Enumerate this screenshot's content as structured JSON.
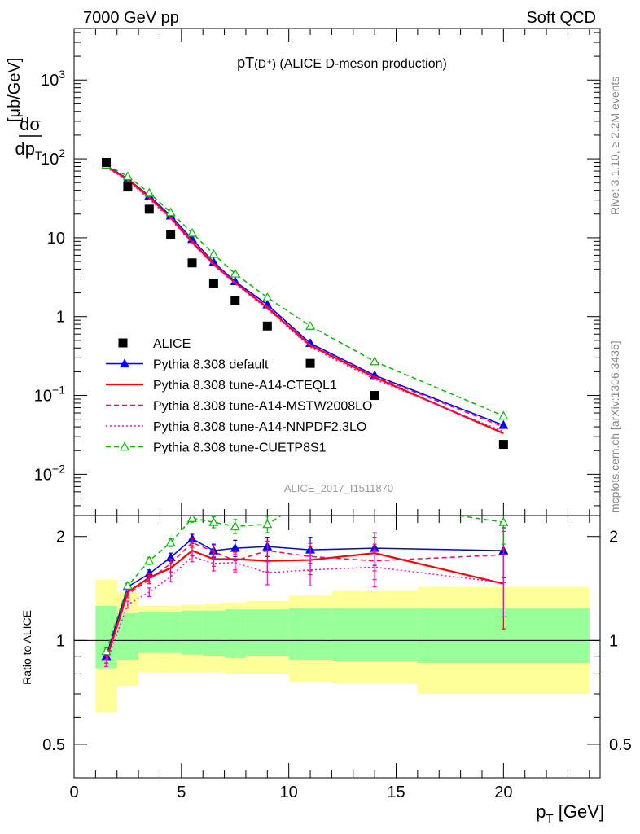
{
  "header": {
    "left": "7000 GeV pp",
    "right": "Soft QCD"
  },
  "side_texts": {
    "rivet": "Rivet 3.1.10, ≥ 2.2M events",
    "mcplots": "mcplots.cern.ch [arXiv:1306.3436]"
  },
  "chart_data": [
    {
      "type": "line",
      "panel": "main",
      "title_main": "pT",
      "title_sub": "(D⁺)",
      "title_rest": " (ALICE D-meson production)",
      "analysis_label": "ALICE_2017_I1511870",
      "ylabel_num": "dσ",
      "ylabel_den": "dp",
      "ylabel_den_sub": "T",
      "ylabel_unit": "[μb/GeV]",
      "yscale": "log",
      "ylim": [
        0.003,
        4500
      ],
      "xlim": [
        0,
        24.5
      ],
      "yticks": [
        {
          "value": 0.01,
          "base": "10",
          "exp": "−2"
        },
        {
          "value": 0.1,
          "base": "10",
          "exp": "−1"
        },
        {
          "value": 1,
          "base": "1",
          "exp": ""
        },
        {
          "value": 10,
          "base": "10",
          "exp": ""
        },
        {
          "value": 100,
          "base": "10",
          "exp": "2"
        },
        {
          "value": 1000,
          "base": "10",
          "exp": "3"
        }
      ],
      "legend_position": "center-left",
      "data_series": {
        "name": "ALICE",
        "color": "#000000",
        "x": [
          1.5,
          2.5,
          3.5,
          4.5,
          5.5,
          6.5,
          7.5,
          9,
          11,
          14,
          20
        ],
        "y": [
          90,
          44,
          23,
          11,
          4.8,
          2.65,
          1.6,
          0.76,
          0.255,
          0.1,
          0.024
        ]
      },
      "series": [
        {
          "name": "Pythia 8.308 default",
          "color": "#0000ff",
          "style": "solid",
          "marker": "triangle-filled",
          "x": [
            1.5,
            2.5,
            3.5,
            4.5,
            5.5,
            6.5,
            7.5,
            9,
            11,
            14,
            20
          ],
          "y": [
            82,
            56,
            34,
            19,
            9.6,
            4.9,
            2.8,
            1.42,
            0.46,
            0.18,
            0.042
          ]
        },
        {
          "name": "Pythia 8.308 tune-A14-CTEQL1",
          "color": "#ff0000",
          "style": "solid",
          "marker": "none",
          "x": [
            1.5,
            2.5,
            3.5,
            4.5,
            5.5,
            6.5,
            7.5,
            9,
            11,
            14,
            20
          ],
          "y": [
            80,
            55,
            33,
            18,
            8.8,
            4.6,
            2.7,
            1.3,
            0.43,
            0.17,
            0.033
          ]
        },
        {
          "name": "Pythia 8.308 tune-A14-MSTW2008LO",
          "color": "#ff0066",
          "style": "dashed",
          "marker": "none",
          "x": [
            1.5,
            2.5,
            3.5,
            4.5,
            5.5,
            6.5,
            7.5,
            9,
            11,
            14,
            20
          ],
          "y": [
            79,
            54,
            32,
            18,
            9.2,
            4.8,
            2.7,
            1.35,
            0.44,
            0.175,
            0.04
          ]
        },
        {
          "name": "Pythia 8.308 tune-A14-NNPDF2.3LO",
          "color": "#ff00dd",
          "style": "dotted",
          "marker": "none",
          "x": [
            1.5,
            2.5,
            3.5,
            4.5,
            5.5,
            6.5,
            7.5,
            9,
            11,
            14,
            20
          ],
          "y": [
            78,
            53,
            31,
            17,
            8.5,
            4.5,
            2.6,
            1.25,
            0.41,
            0.16,
            0.035
          ]
        },
        {
          "name": "Pythia 8.308 tune-CUETP8S1",
          "color": "#00bb00",
          "style": "dashed",
          "marker": "triangle-open",
          "x": [
            1.5,
            2.5,
            3.5,
            4.5,
            5.5,
            6.5,
            7.5,
            9,
            11,
            14,
            20
          ],
          "y": [
            84,
            60,
            37,
            21,
            11.5,
            6.2,
            3.5,
            1.75,
            0.76,
            0.27,
            0.055
          ]
        }
      ]
    },
    {
      "type": "line",
      "panel": "ratio",
      "ylabel": "Ratio to ALICE",
      "xlabel_main": "p",
      "xlabel_sub": "T",
      "xlabel_unit": " [GeV]",
      "yscale": "log",
      "ylim": [
        0.4,
        2.3
      ],
      "xlim": [
        0,
        24.5
      ],
      "yticks": [
        {
          "value": 0.5,
          "label": "0.5"
        },
        {
          "value": 1,
          "label": "1"
        },
        {
          "value": 2,
          "label": "2"
        }
      ],
      "xticks": [
        {
          "value": 0,
          "label": "0"
        },
        {
          "value": 5,
          "label": "5"
        },
        {
          "value": 10,
          "label": "10"
        },
        {
          "value": 15,
          "label": "15"
        },
        {
          "value": 20,
          "label": "20"
        }
      ],
      "uncertainty_bands": {
        "bin_edges": [
          1,
          2,
          3,
          4,
          5,
          6,
          7,
          8,
          10,
          12,
          16,
          24
        ],
        "stat_low": [
          0.83,
          0.88,
          0.92,
          0.92,
          0.91,
          0.9,
          0.89,
          0.9,
          0.88,
          0.87,
          0.86
        ],
        "stat_high": [
          1.26,
          1.2,
          1.21,
          1.21,
          1.22,
          1.22,
          1.23,
          1.23,
          1.24,
          1.24,
          1.24
        ],
        "syst_low": [
          0.62,
          0.74,
          0.81,
          0.81,
          0.81,
          0.81,
          0.8,
          0.8,
          0.76,
          0.75,
          0.7
        ],
        "syst_high": [
          1.5,
          1.38,
          1.26,
          1.26,
          1.27,
          1.28,
          1.29,
          1.3,
          1.35,
          1.39,
          1.43
        ],
        "stat_color": "#99ff99",
        "syst_color": "#ffff99"
      },
      "series": [
        {
          "name": "Pythia 8.308 default",
          "color": "#0000ff",
          "style": "solid",
          "marker": "triangle-filled",
          "x": [
            1.5,
            2.5,
            3.5,
            4.5,
            5.5,
            6.5,
            7.5,
            9,
            11,
            14,
            20
          ],
          "y": [
            0.9,
            1.43,
            1.56,
            1.74,
            1.97,
            1.82,
            1.85,
            1.87,
            1.83,
            1.85,
            1.82
          ],
          "err": [
            0.02,
            0.03,
            0.04,
            0.05,
            0.06,
            0.08,
            0.1,
            0.12,
            0.16,
            0.2,
            0.3
          ]
        },
        {
          "name": "Pythia 8.308 tune-A14-CTEQL1",
          "color": "#ff0000",
          "style": "solid",
          "marker": "none",
          "x": [
            1.5,
            2.5,
            3.5,
            4.5,
            5.5,
            6.5,
            7.5,
            9,
            11,
            14,
            20
          ],
          "y": [
            0.88,
            1.38,
            1.52,
            1.62,
            1.82,
            1.72,
            1.72,
            1.7,
            1.71,
            1.79,
            1.46
          ],
          "err": [
            0.02,
            0.03,
            0.04,
            0.05,
            0.06,
            0.08,
            0.1,
            0.12,
            0.16,
            0.2,
            0.38
          ]
        },
        {
          "name": "Pythia 8.308 tune-A14-MSTW2008LO",
          "color": "#ff0066",
          "style": "dashed",
          "marker": "none",
          "x": [
            1.5,
            2.5,
            3.5,
            4.5,
            5.5,
            6.5,
            7.5,
            9,
            11,
            14,
            20
          ],
          "y": [
            0.88,
            1.36,
            1.5,
            1.67,
            1.92,
            1.81,
            1.7,
            1.82,
            1.75,
            1.7,
            1.77
          ],
          "err": [
            0.02,
            0.03,
            0.04,
            0.05,
            0.06,
            0.08,
            0.1,
            0.12,
            0.16,
            0.2,
            0.3
          ]
        },
        {
          "name": "Pythia 8.308 tune-A14-NNPDF2.3LO",
          "color": "#ff00dd",
          "style": "dotted",
          "marker": "none",
          "x": [
            1.5,
            2.5,
            3.5,
            4.5,
            5.5,
            6.5,
            7.5,
            9,
            11,
            14,
            20
          ],
          "y": [
            0.86,
            1.27,
            1.38,
            1.53,
            1.75,
            1.67,
            1.68,
            1.57,
            1.6,
            1.63,
            1.47
          ],
          "err": [
            0.02,
            0.03,
            0.04,
            0.05,
            0.06,
            0.08,
            0.1,
            0.12,
            0.16,
            0.2,
            0.3
          ]
        },
        {
          "name": "Pythia 8.308 tune-CUETP8S1",
          "color": "#00bb00",
          "style": "dashed",
          "marker": "triangle-open",
          "x": [
            1.5,
            2.5,
            3.5,
            4.5,
            5.5,
            6.5,
            7.5,
            9,
            11,
            14,
            20
          ],
          "y": [
            0.93,
            1.44,
            1.7,
            1.92,
            2.26,
            2.2,
            2.14,
            2.17,
            2.6,
            2.5,
            2.2
          ],
          "err": [
            0.02,
            0.03,
            0.04,
            0.05,
            0.06,
            0.08,
            0.1,
            0.12,
            0.16,
            0.2,
            0.3
          ]
        }
      ]
    }
  ]
}
